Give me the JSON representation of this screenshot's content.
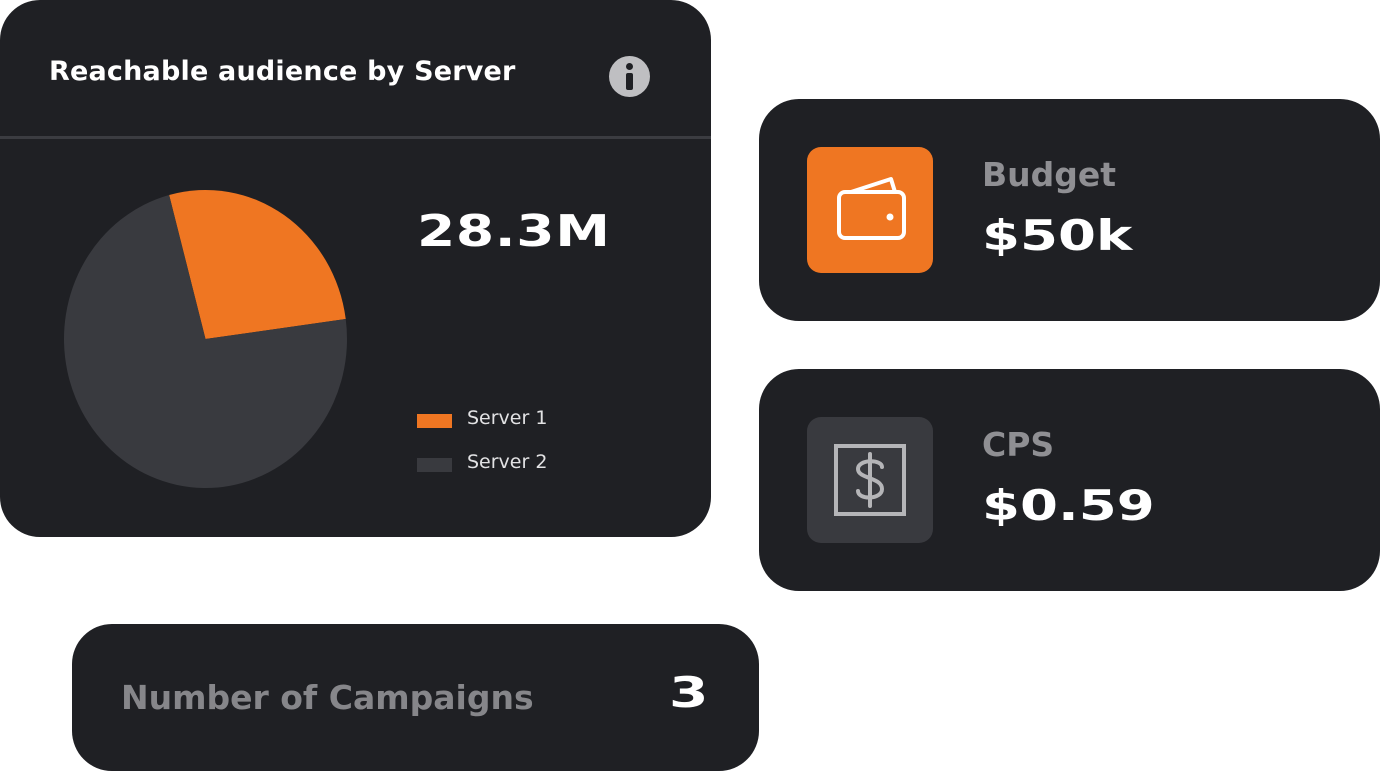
{
  "colors": {
    "card_bg": "#1f2024",
    "accent_orange": "#ef7622",
    "slice_gray": "#393a3f",
    "icon_tile_gray": "#393a3f",
    "icon_stroke_gray": "#b5b5b8"
  },
  "audience": {
    "title": "Reachable audience by Server",
    "info_icon": "info-icon",
    "total": "28.3M"
  },
  "chart_data": {
    "type": "pie",
    "series": [
      {
        "name": "Server 1",
        "value": 27,
        "color": "#ef7622"
      },
      {
        "name": "Server 2",
        "value": 73,
        "color": "#393a3f"
      }
    ],
    "legend_placement": "right"
  },
  "budget": {
    "icon": "wallet-icon",
    "label": "Budget",
    "value": "$50k"
  },
  "cps": {
    "icon": "dollar-icon",
    "label": "CPS",
    "value": "$0.59"
  },
  "campaigns": {
    "label": "Number of Campaigns",
    "value": "3"
  }
}
